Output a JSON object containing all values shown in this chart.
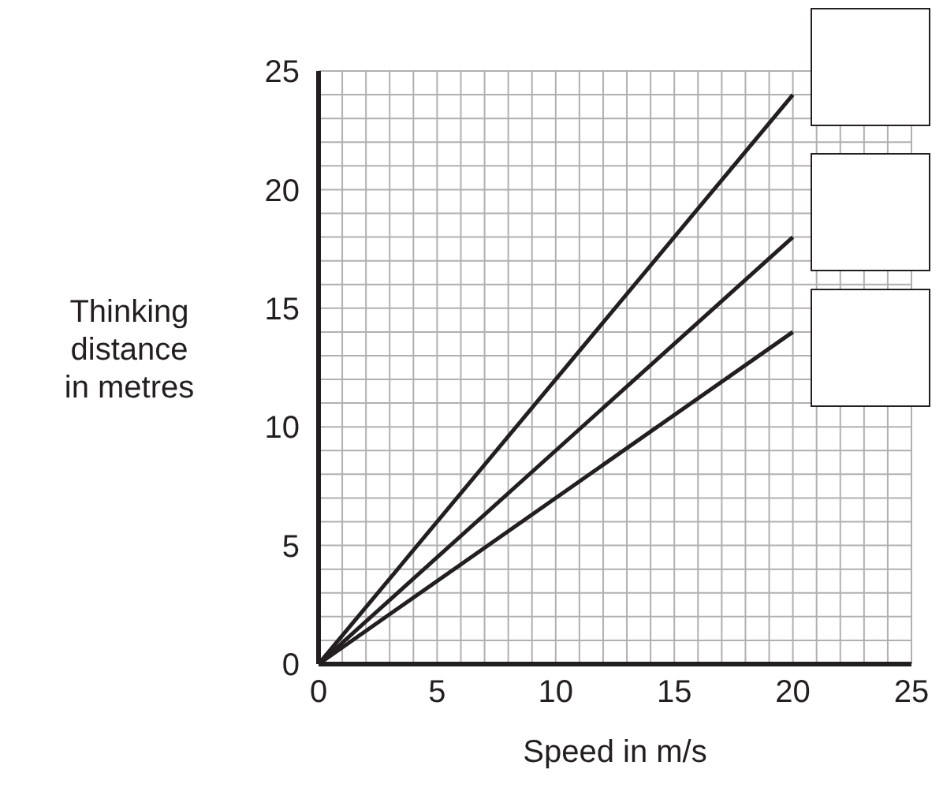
{
  "chart_data": {
    "type": "line",
    "xlabel": "Speed in m/s",
    "ylabel": "Thinking distance in metres",
    "x": [
      0,
      20
    ],
    "series": [
      {
        "values": [
          0,
          24
        ],
        "color": "#231f20"
      },
      {
        "values": [
          0,
          18
        ],
        "color": "#231f20"
      },
      {
        "values": [
          0,
          14
        ],
        "color": "#231f20"
      }
    ],
    "xlim": [
      0,
      25
    ],
    "ylim": [
      0,
      25
    ],
    "xticks": [
      0,
      {
        "value": 1,
        "label": null
      },
      {
        "value": 2,
        "label": null
      },
      {
        "value": 3,
        "label": null
      },
      {
        "value": 4,
        "label": null
      },
      5,
      {
        "value": 6,
        "label": null
      },
      {
        "value": 7,
        "label": null
      },
      {
        "value": 8,
        "label": null
      },
      {
        "value": 9,
        "label": null
      },
      10,
      {
        "value": 11,
        "label": null
      },
      {
        "value": 12,
        "label": null
      },
      {
        "value": 13,
        "label": null
      },
      {
        "value": 14,
        "label": null
      },
      15,
      {
        "value": 16,
        "label": null
      },
      {
        "value": 17,
        "label": null
      },
      {
        "value": 18,
        "label": null
      },
      {
        "value": 19,
        "label": null
      },
      20,
      {
        "value": 21,
        "label": null
      },
      {
        "value": 22,
        "label": null
      },
      {
        "value": 23,
        "label": null
      },
      {
        "value": 24,
        "label": null
      },
      25
    ],
    "yticks": [
      0,
      {
        "value": 1,
        "label": null
      },
      {
        "value": 2,
        "label": null
      },
      {
        "value": 3,
        "label": null
      },
      {
        "value": 4,
        "label": null
      },
      5,
      {
        "value": 6,
        "label": null
      },
      {
        "value": 7,
        "label": null
      },
      {
        "value": 8,
        "label": null
      },
      {
        "value": 9,
        "label": null
      },
      10,
      {
        "value": 11,
        "label": null
      },
      {
        "value": 12,
        "label": null
      },
      {
        "value": 13,
        "label": null
      },
      {
        "value": 14,
        "label": null
      },
      15,
      {
        "value": 16,
        "label": null
      },
      {
        "value": 17,
        "label": null
      },
      {
        "value": 18,
        "label": null
      },
      {
        "value": 19,
        "label": null
      },
      20,
      {
        "value": 21,
        "label": null
      },
      {
        "value": 22,
        "label": null
      },
      {
        "value": 23,
        "label": null
      },
      {
        "value": 24,
        "label": null
      },
      25
    ],
    "grid": true,
    "marker": "none",
    "line_style": "solid"
  }
}
